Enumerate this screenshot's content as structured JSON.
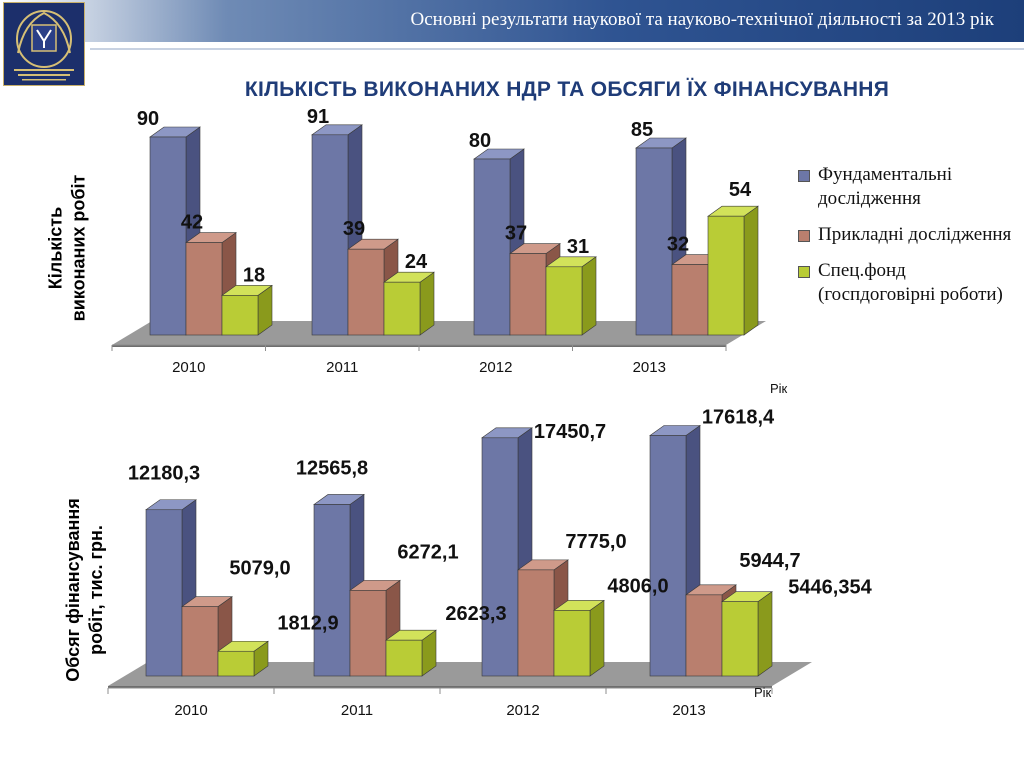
{
  "header": {
    "title": "Основні результати наукової та науково-технічної діяльності за 2013 рік"
  },
  "page_title": "КІЛЬКІСТЬ ВИКОНАНИХ НДР ТА ОБСЯГИ ЇХ ФІНАНСУВАННЯ",
  "legend": [
    {
      "label": "Фундаментальні дослідження",
      "color": "#6d77a6"
    },
    {
      "label": "Прикладні дослідження",
      "color": "#b97f6e"
    },
    {
      "label": "Спец.фонд (госпдоговірні роботи)",
      "color": "#b9cc36"
    }
  ],
  "colors": {
    "fund": "#6d77a6",
    "fund_side": "#4a5280",
    "fund_top": "#8d97c4",
    "appl": "#b97f6e",
    "appl_side": "#8a5648",
    "appl_top": "#cf9a8a",
    "spec": "#b9cc36",
    "spec_side": "#8a9a1c",
    "spec_top": "#d2e25a",
    "floor": "#9a9a9a",
    "floor_edge": "#6e6e6e"
  },
  "chart_data": [
    {
      "type": "bar",
      "categories": [
        "2010",
        "2011",
        "2012",
        "2013"
      ],
      "series": [
        {
          "name": "Фундаментальні дослідження",
          "values": [
            90,
            91,
            80,
            85
          ],
          "labels": [
            "90",
            "91",
            "80",
            "85"
          ]
        },
        {
          "name": "Прикладні дослідження",
          "values": [
            42,
            39,
            37,
            32
          ],
          "labels": [
            "42",
            "39",
            "37",
            "32"
          ]
        },
        {
          "name": "Спец.фонд (госпдоговірні роботи)",
          "values": [
            18,
            24,
            31,
            54
          ],
          "labels": [
            "18",
            "24",
            "31",
            "54"
          ]
        }
      ],
      "ylabel": "Кількість виконаних робіт",
      "xlabel": "Рік",
      "grid": false,
      "legend": "right"
    },
    {
      "type": "bar",
      "categories": [
        "2010",
        "2011",
        "2012",
        "2013"
      ],
      "series": [
        {
          "name": "Фундаментальні дослідження",
          "values": [
            12180.3,
            12565.8,
            17450.7,
            17618.4
          ],
          "labels": [
            "12180,3",
            "12565,8",
            "17450,7",
            "17618,4"
          ]
        },
        {
          "name": "Прикладні дослідження",
          "values": [
            5079.0,
            6272.1,
            7775.0,
            5944.7
          ],
          "labels": [
            "5079,0",
            "6272,1",
            "7775,0",
            "5944,7"
          ]
        },
        {
          "name": "Спец.фонд (госпдоговірні роботи)",
          "values": [
            1812.9,
            2623.3,
            4806.0,
            5446.354
          ],
          "labels": [
            "1812,9",
            "2623,3",
            "4806,0",
            "5446,354"
          ]
        }
      ],
      "ylabel": "Обсяг фінансування робіт, тис. грн.",
      "xlabel": "Рік",
      "grid": false,
      "legend": "none"
    }
  ]
}
